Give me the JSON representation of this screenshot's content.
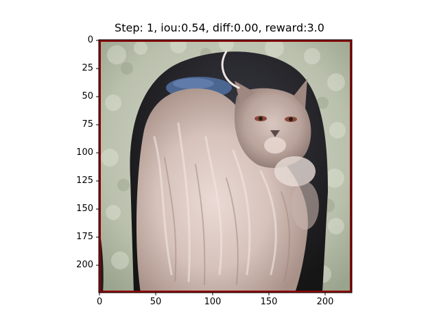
{
  "figure": {
    "title": "Step: 1, iou:0.54, diff:0.00, reward:3.0",
    "x_ticks": [
      "0",
      "50",
      "100",
      "150",
      "200"
    ],
    "y_ticks": [
      "0",
      "25",
      "50",
      "75",
      "100",
      "125",
      "150",
      "175",
      "200"
    ],
    "image_subject": "Himalayan cat curled up inside a sage-green fleece cat bed tunnel",
    "box_color": "#8b0000"
  }
}
